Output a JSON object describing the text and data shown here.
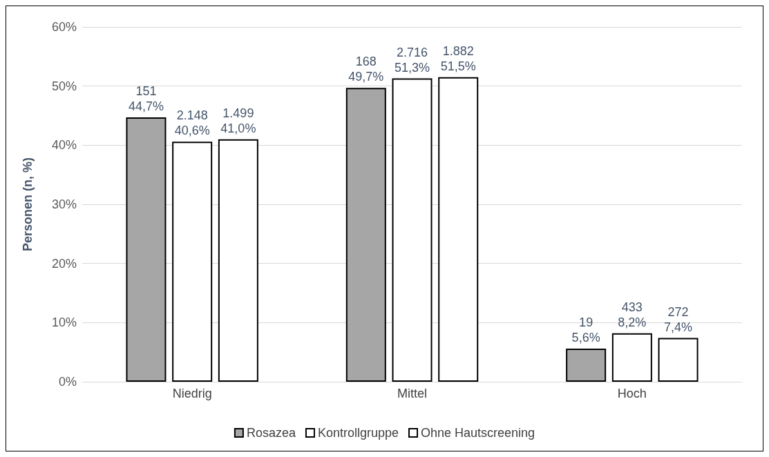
{
  "chart_data": {
    "type": "bar",
    "ylabel": "Personen (n, %)",
    "categories": [
      "Niedrig",
      "Mittel",
      "Hoch"
    ],
    "series": [
      {
        "name": "Rosazea",
        "color": "#a6a6a6",
        "values": [
          44.7,
          49.7,
          5.6
        ],
        "value_labels": [
          "151\n44,7%",
          "168\n49,7%",
          "19\n5,6%"
        ]
      },
      {
        "name": "Kontrollgruppe",
        "color": "#ffffff",
        "values": [
          40.6,
          51.3,
          8.2
        ],
        "value_labels": [
          "2.148\n40,6%",
          "2.716\n51,3%",
          "433\n8,2%"
        ]
      },
      {
        "name": "Ohne Hautscreening",
        "color": "#ffffff",
        "values": [
          41.0,
          51.5,
          7.4
        ],
        "value_labels": [
          "1.499\n41,0%",
          "1.882\n51,5%",
          "272\n7,4%"
        ]
      }
    ],
    "ylim": [
      0,
      60
    ],
    "yticks": [
      {
        "value": 0,
        "label": "0%"
      },
      {
        "value": 10,
        "label": "10%"
      },
      {
        "value": 20,
        "label": "20%"
      },
      {
        "value": 30,
        "label": "30%"
      },
      {
        "value": 40,
        "label": "40%"
      },
      {
        "value": 50,
        "label": "50%"
      },
      {
        "value": 60,
        "label": "60%"
      }
    ],
    "grid": "y",
    "legend": "bottom"
  }
}
